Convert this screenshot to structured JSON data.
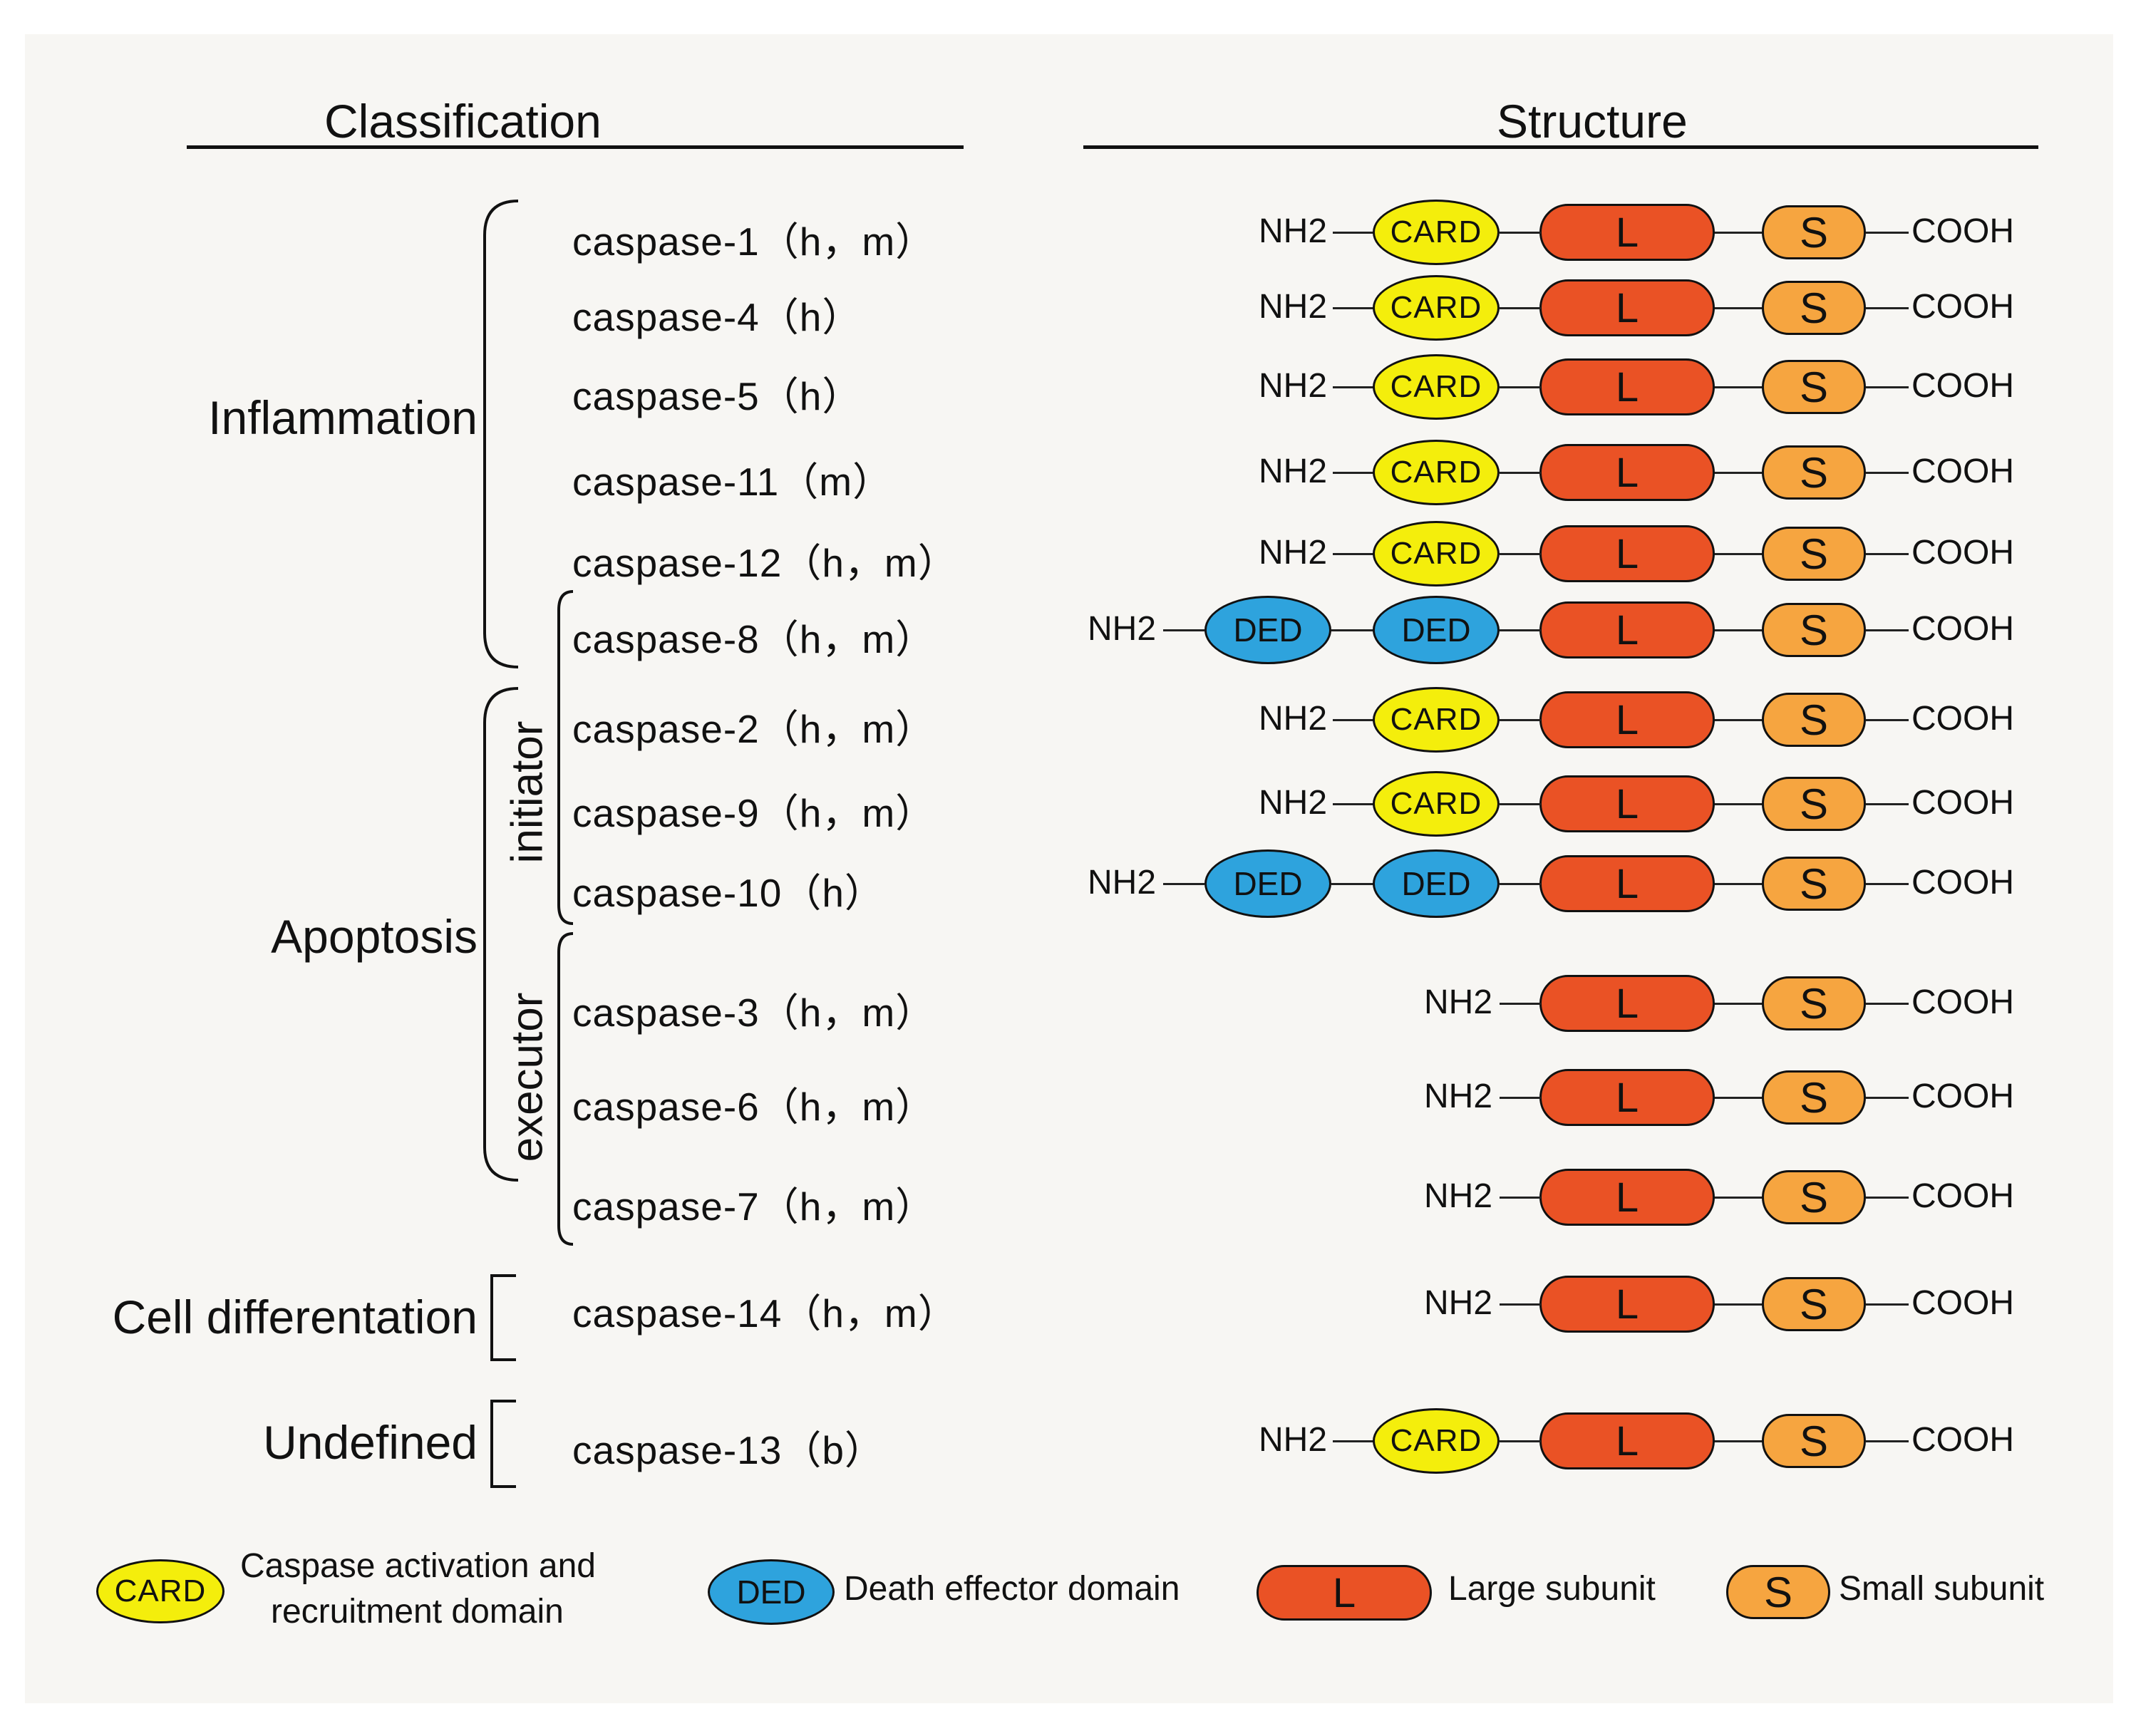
{
  "headers": {
    "classification": "Classification",
    "structure": "Structure"
  },
  "groups": {
    "inflammation": "Inflammation",
    "apoptosis": "Apoptosis",
    "initiator": "initiator",
    "executor": "executor",
    "cell_differentiation": "Cell differentation",
    "undefined": "Undefined"
  },
  "terminals": {
    "n": "NH2",
    "c": "COOH"
  },
  "domains": {
    "card": "CARD",
    "ded": "DED",
    "large": "L",
    "small": "S"
  },
  "caspases": [
    {
      "name": "caspase-1（h，m）",
      "structure": "CARD"
    },
    {
      "name": "caspase-4（h）",
      "structure": "CARD"
    },
    {
      "name": "caspase-5（h）",
      "structure": "CARD"
    },
    {
      "name": "caspase-11（m）",
      "structure": "CARD"
    },
    {
      "name": "caspase-12（h，m）",
      "structure": "CARD"
    },
    {
      "name": "caspase-8（h，m）",
      "structure": "DED"
    },
    {
      "name": "caspase-2（h，m）",
      "structure": "CARD"
    },
    {
      "name": "caspase-9（h，m）",
      "structure": "CARD"
    },
    {
      "name": "caspase-10（h）",
      "structure": "DED"
    },
    {
      "name": "caspase-3（h，m）",
      "structure": "NONE"
    },
    {
      "name": "caspase-6（h，m）",
      "structure": "NONE"
    },
    {
      "name": "caspase-7（h，m）",
      "structure": "NONE"
    },
    {
      "name": "caspase-14（h，m）",
      "structure": "NONE"
    },
    {
      "name": "caspase-13（b）",
      "structure": "CARD"
    }
  ],
  "legend": {
    "card_line1": "Caspase activation and",
    "card_line2": "recruitment domain",
    "ded": "Death effector domain",
    "large": "Large subunit",
    "small": "Small subunit"
  },
  "colors": {
    "card": "#f4ee0c",
    "ded": "#2ea3dd",
    "large": "#ea5225",
    "small": "#f6a540"
  }
}
